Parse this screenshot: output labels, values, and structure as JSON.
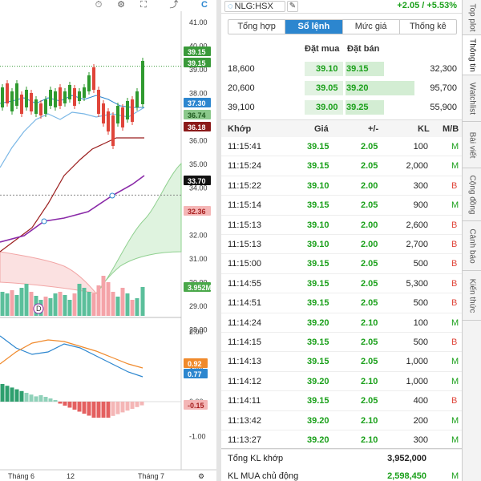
{
  "chart": {
    "price_labels": [
      "41.00",
      "40.00",
      "39.00",
      "38.00",
      "37.00",
      "36.00",
      "35.00",
      "34.00",
      "33.00",
      "32.00",
      "31.00",
      "30.00",
      "29.00",
      "28.00"
    ],
    "tags": [
      {
        "text": "39.15",
        "bg": "#3a9a3a",
        "fg": "#ffffff"
      },
      {
        "text": "39.15",
        "bg": "#3a9a3a",
        "fg": "#ffffff"
      },
      {
        "text": "37.30",
        "bg": "#2c86cf",
        "fg": "#ffffff"
      },
      {
        "text": "36.74",
        "bg": "#8bc88b",
        "fg": "#1e5a1e"
      },
      {
        "text": "36.18",
        "bg": "#8b1a1a",
        "fg": "#ffffff"
      },
      {
        "text": "33.70",
        "bg": "#111111",
        "fg": "#ffffff"
      },
      {
        "text": "32.36",
        "bg": "#f4b6b6",
        "fg": "#a82020"
      },
      {
        "text": "3.952M",
        "bg": "#4aa84a",
        "fg": "#ffffff"
      }
    ],
    "macd_labels": [
      "2.00",
      "1.00",
      "0.00",
      "-1.00"
    ],
    "macd_tags": [
      {
        "text": "0.92",
        "bg": "#f08a2c",
        "fg": "#ffffff"
      },
      {
        "text": "0.77",
        "bg": "#2c86cf",
        "fg": "#ffffff"
      },
      {
        "text": "-0.15",
        "bg": "#f4b6b6",
        "fg": "#a82020"
      }
    ],
    "time_labels": [
      "Tháng 6",
      "12",
      "Tháng 7"
    ],
    "dividend_marker": "D"
  },
  "header": {
    "symbol": "NLG:HSX",
    "change": "+2.05 / +5.53%"
  },
  "tabs": [
    "Tổng hợp",
    "Sổ lệnh",
    "Mức giá",
    "Thống kê"
  ],
  "orderbook": {
    "head_buy": "Đặt mua",
    "head_sell": "Đặt bán",
    "rows": [
      {
        "bid_vol": "18,600",
        "bid": "39.10",
        "ask": "39.15",
        "ask_vol": "32,300"
      },
      {
        "bid_vol": "20,600",
        "bid": "39.05",
        "ask": "39.20",
        "ask_vol": "95,700"
      },
      {
        "bid_vol": "39,100",
        "bid": "39.00",
        "ask": "39.25",
        "ask_vol": "55,900"
      }
    ]
  },
  "trades": {
    "headers": {
      "time": "Khớp",
      "price": "Giá",
      "change": "+/-",
      "volume": "KL",
      "side": "M/B"
    },
    "rows": [
      {
        "time": "11:15:41",
        "price": "39.15",
        "change": "2.05",
        "volume": "100",
        "side": "M"
      },
      {
        "time": "11:15:24",
        "price": "39.15",
        "change": "2.05",
        "volume": "2,000",
        "side": "M"
      },
      {
        "time": "11:15:22",
        "price": "39.10",
        "change": "2.00",
        "volume": "300",
        "side": "B"
      },
      {
        "time": "11:15:14",
        "price": "39.15",
        "change": "2.05",
        "volume": "900",
        "side": "M"
      },
      {
        "time": "11:15:13",
        "price": "39.10",
        "change": "2.00",
        "volume": "2,600",
        "side": "B"
      },
      {
        "time": "11:15:13",
        "price": "39.10",
        "change": "2.00",
        "volume": "2,700",
        "side": "B"
      },
      {
        "time": "11:15:00",
        "price": "39.15",
        "change": "2.05",
        "volume": "500",
        "side": "B"
      },
      {
        "time": "11:14:55",
        "price": "39.15",
        "change": "2.05",
        "volume": "5,300",
        "side": "B"
      },
      {
        "time": "11:14:51",
        "price": "39.15",
        "change": "2.05",
        "volume": "500",
        "side": "B"
      },
      {
        "time": "11:14:24",
        "price": "39.20",
        "change": "2.10",
        "volume": "100",
        "side": "M"
      },
      {
        "time": "11:14:15",
        "price": "39.15",
        "change": "2.05",
        "volume": "500",
        "side": "B"
      },
      {
        "time": "11:14:13",
        "price": "39.15",
        "change": "2.05",
        "volume": "1,000",
        "side": "M"
      },
      {
        "time": "11:14:12",
        "price": "39.20",
        "change": "2.10",
        "volume": "1,000",
        "side": "M"
      },
      {
        "time": "11:14:11",
        "price": "39.15",
        "change": "2.05",
        "volume": "400",
        "side": "B"
      },
      {
        "time": "11:13:42",
        "price": "39.20",
        "change": "2.10",
        "volume": "200",
        "side": "M"
      },
      {
        "time": "11:13:27",
        "price": "39.20",
        "change": "2.10",
        "volume": "300",
        "side": "M"
      }
    ]
  },
  "footer": {
    "total_label": "Tổng KL khớp",
    "total_value": "3,952,000",
    "buy_label": "KL MUA chủ động",
    "buy_value": "2,598,450",
    "buy_side": "M"
  },
  "side_tabs": [
    "Top plot",
    "Thông tin",
    "Watchlist",
    "Bài viết",
    "Cộng đồng",
    "Cảnh báo",
    "Kiến thức"
  ],
  "colors": {
    "up": "#1ba01b",
    "down": "#e0453a",
    "accent": "#2c86cf"
  }
}
